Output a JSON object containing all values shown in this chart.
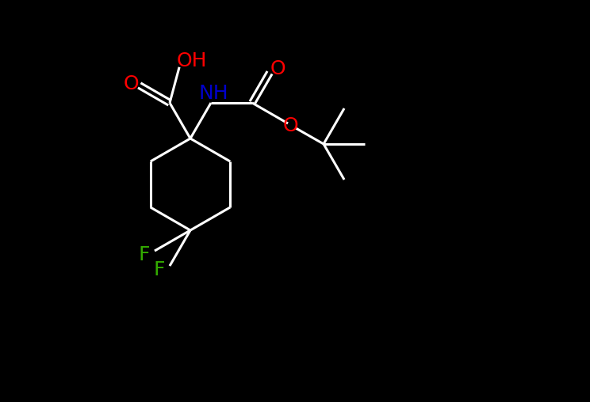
{
  "background_color": "#000000",
  "bond_color": "#ffffff",
  "atom_colors": {
    "O": "#ff0000",
    "N": "#0000cc",
    "F": "#33aa00",
    "C": "#ffffff",
    "H": "#ffffff"
  },
  "figsize": [
    7.44,
    5.08
  ],
  "dpi": 100
}
